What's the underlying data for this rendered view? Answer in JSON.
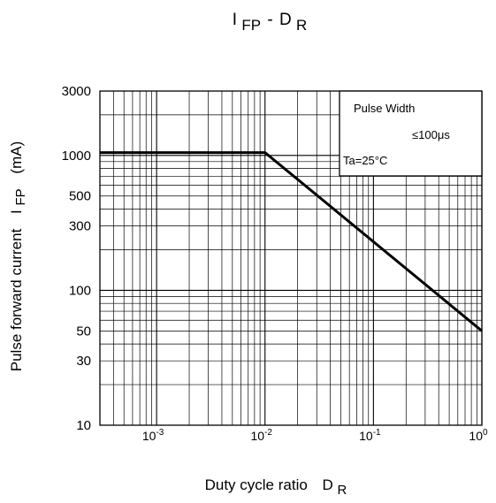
{
  "chart_data": {
    "type": "line",
    "title_main": "I",
    "title_main_sub": "FP",
    "title_sep": "-",
    "title_d": "D",
    "title_d_sub": "R",
    "xlabel": "Duty cycle ratio",
    "xlabel_symbol": "D",
    "xlabel_symbol_sub": "R",
    "ylabel": "Pulse forward current",
    "ylabel_symbol": "I",
    "ylabel_symbol_sub": "FP",
    "ylabel_unit": "(mA)",
    "x_scale": "log",
    "y_scale": "log",
    "xlim": [
      0.0003,
      1
    ],
    "ylim": [
      10,
      3000
    ],
    "grid": true,
    "x_ticks": [
      {
        "value": 0.001,
        "base": "10",
        "exp": "-3"
      },
      {
        "value": 0.01,
        "base": "10",
        "exp": "-2"
      },
      {
        "value": 0.1,
        "base": "10",
        "exp": "-1"
      },
      {
        "value": 1,
        "base": "10",
        "exp": "0"
      }
    ],
    "y_ticks": [
      {
        "value": 10,
        "label": "10"
      },
      {
        "value": 30,
        "label": "30"
      },
      {
        "value": 50,
        "label": "50"
      },
      {
        "value": 100,
        "label": "100"
      },
      {
        "value": 300,
        "label": "300"
      },
      {
        "value": 500,
        "label": "500"
      },
      {
        "value": 1000,
        "label": "1000"
      },
      {
        "value": 3000,
        "label": "3000"
      }
    ],
    "series": [
      {
        "x": [
          0.0003,
          0.01,
          1
        ],
        "y": [
          1050,
          1050,
          50
        ]
      }
    ],
    "annotation": {
      "line1": "Pulse Width",
      "line2": "≤100μs",
      "line3": "Ta=25°C"
    }
  }
}
